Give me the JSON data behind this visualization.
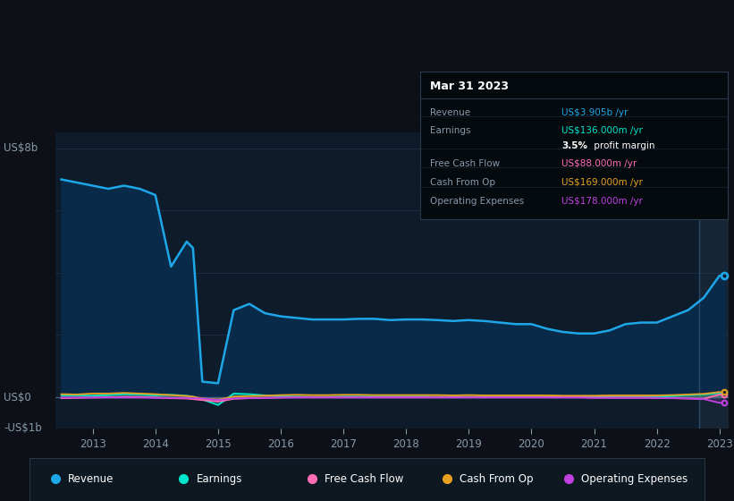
{
  "bg_color": "#0d1117",
  "plot_bg_color": "#0d1b2a",
  "grid_color": "#253a52",
  "text_color": "#8899aa",
  "years": [
    2012.5,
    2012.75,
    2013.0,
    2013.25,
    2013.5,
    2013.75,
    2014.0,
    2014.25,
    2014.5,
    2014.6,
    2014.75,
    2015.0,
    2015.25,
    2015.5,
    2015.75,
    2016.0,
    2016.25,
    2016.5,
    2016.75,
    2017.0,
    2017.25,
    2017.5,
    2017.75,
    2018.0,
    2018.25,
    2018.5,
    2018.75,
    2019.0,
    2019.25,
    2019.5,
    2019.75,
    2020.0,
    2020.25,
    2020.5,
    2020.75,
    2021.0,
    2021.25,
    2021.5,
    2021.75,
    2022.0,
    2022.25,
    2022.5,
    2022.75,
    2023.0,
    2023.08
  ],
  "revenue": [
    7.0,
    6.9,
    6.8,
    6.7,
    6.8,
    6.7,
    6.5,
    4.2,
    5.0,
    4.8,
    0.5,
    0.45,
    2.8,
    3.0,
    2.7,
    2.6,
    2.55,
    2.5,
    2.5,
    2.5,
    2.52,
    2.52,
    2.48,
    2.5,
    2.5,
    2.48,
    2.45,
    2.48,
    2.45,
    2.4,
    2.35,
    2.35,
    2.2,
    2.1,
    2.05,
    2.05,
    2.15,
    2.35,
    2.4,
    2.4,
    2.6,
    2.8,
    3.2,
    3.905,
    3.905
  ],
  "earnings": [
    0.06,
    0.06,
    0.05,
    0.07,
    0.1,
    0.09,
    0.06,
    0.08,
    0.05,
    0.02,
    -0.07,
    -0.25,
    0.12,
    0.1,
    0.06,
    0.03,
    0.02,
    0.01,
    0.01,
    0.02,
    0.02,
    0.02,
    0.02,
    0.02,
    0.02,
    0.01,
    0.01,
    0.01,
    0.01,
    0.01,
    0.01,
    0.01,
    0.01,
    0.01,
    0.01,
    0.01,
    0.01,
    0.01,
    0.01,
    0.01,
    0.04,
    0.07,
    0.09,
    0.136,
    0.136
  ],
  "free_cash_flow": [
    -0.03,
    -0.02,
    -0.01,
    0.0,
    0.01,
    0.01,
    -0.01,
    -0.03,
    -0.04,
    -0.06,
    -0.09,
    -0.14,
    -0.05,
    -0.03,
    -0.02,
    -0.01,
    0.0,
    0.0,
    0.0,
    0.0,
    0.0,
    0.0,
    0.0,
    0.0,
    0.0,
    0.0,
    0.0,
    0.0,
    0.0,
    0.0,
    0.0,
    0.0,
    0.0,
    0.0,
    0.0,
    -0.01,
    -0.01,
    -0.01,
    -0.01,
    -0.02,
    -0.03,
    -0.04,
    -0.05,
    0.088,
    0.088
  ],
  "cash_from_op": [
    0.1,
    0.09,
    0.12,
    0.12,
    0.14,
    0.12,
    0.1,
    0.07,
    0.04,
    0.02,
    -0.04,
    -0.08,
    0.02,
    0.04,
    0.05,
    0.07,
    0.08,
    0.07,
    0.07,
    0.08,
    0.08,
    0.07,
    0.07,
    0.07,
    0.07,
    0.07,
    0.06,
    0.07,
    0.06,
    0.06,
    0.06,
    0.06,
    0.06,
    0.05,
    0.05,
    0.05,
    0.06,
    0.06,
    0.06,
    0.06,
    0.07,
    0.09,
    0.11,
    0.169,
    0.169
  ],
  "op_expenses": [
    -0.01,
    -0.01,
    -0.01,
    -0.01,
    -0.01,
    -0.01,
    -0.02,
    -0.02,
    -0.02,
    -0.03,
    -0.04,
    -0.09,
    -0.04,
    -0.03,
    -0.02,
    -0.01,
    -0.01,
    -0.01,
    -0.01,
    -0.01,
    -0.01,
    -0.01,
    -0.01,
    -0.01,
    -0.01,
    -0.01,
    -0.01,
    -0.01,
    -0.01,
    -0.01,
    -0.01,
    -0.01,
    -0.01,
    -0.01,
    -0.01,
    -0.02,
    -0.02,
    -0.02,
    -0.02,
    -0.02,
    -0.03,
    -0.04,
    -0.06,
    -0.178,
    -0.178
  ],
  "revenue_color": "#1ea7e8",
  "earnings_color": "#00e5cc",
  "free_cash_flow_color": "#ff6eb4",
  "cash_from_op_color": "#e8a020",
  "op_expenses_color": "#c040e0",
  "revenue_fill_color": "#0a2a4a",
  "ylim_min": -1.0,
  "ylim_max": 8.5,
  "xlim_min": 2012.4,
  "xlim_max": 2023.15,
  "xticks": [
    2013,
    2014,
    2015,
    2016,
    2017,
    2018,
    2019,
    2020,
    2021,
    2022,
    2023
  ],
  "grid_yticks": [
    0,
    2,
    4,
    6,
    8
  ],
  "shade_start": 2022.67,
  "shade_end": 2023.15,
  "vline_x": 2022.67,
  "info_box": {
    "title": "Mar 31 2023",
    "rows": [
      {
        "label": "Revenue",
        "value": "US$3.905b /yr",
        "value_color": "#1ea7e8"
      },
      {
        "label": "Earnings",
        "value": "US$136.000m /yr",
        "value_color": "#00e5cc"
      },
      {
        "label": "",
        "value": "3.5% profit margin",
        "value_color": "#ffffff",
        "bold_part": "3.5%"
      },
      {
        "label": "Free Cash Flow",
        "value": "US$88.000m /yr",
        "value_color": "#ff6eb4"
      },
      {
        "label": "Cash From Op",
        "value": "US$169.000m /yr",
        "value_color": "#e8a020"
      },
      {
        "label": "Operating Expenses",
        "value": "US$178.000m /yr",
        "value_color": "#c040e0"
      }
    ]
  },
  "legend_items": [
    {
      "label": "Revenue",
      "color": "#1ea7e8"
    },
    {
      "label": "Earnings",
      "color": "#00e5cc"
    },
    {
      "label": "Free Cash Flow",
      "color": "#ff6eb4"
    },
    {
      "label": "Cash From Op",
      "color": "#e8a020"
    },
    {
      "label": "Operating Expenses",
      "color": "#c040e0"
    }
  ]
}
